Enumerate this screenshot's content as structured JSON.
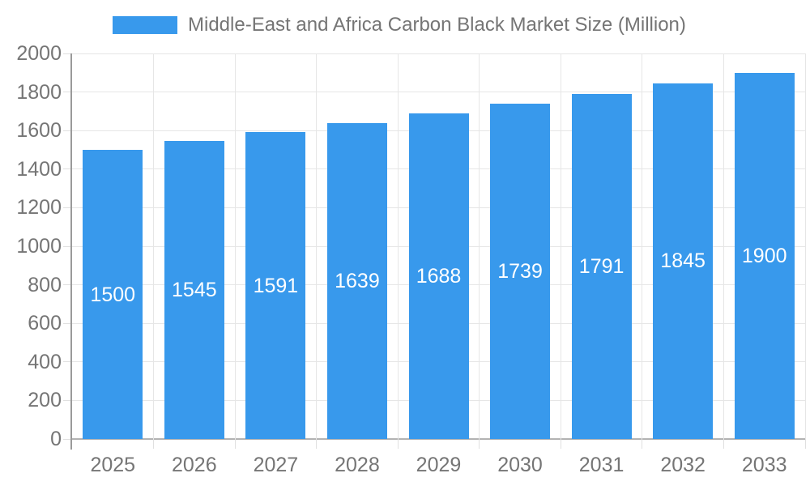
{
  "legend": {
    "label": "Middle-East and Africa Carbon Black Market Size (Million)"
  },
  "colors": {
    "bar": "#3899EC",
    "bar_label_text": "#ffffff",
    "grid_line": "#e6e6e6",
    "baseline": "#b3b3b3",
    "axis_line": "#9a9a9a",
    "tick_line": "#e0e0e0",
    "axis_label_text": "#757575"
  },
  "chart_data": {
    "type": "bar",
    "title": "Middle-East and Africa Carbon Black Market Size (Million)",
    "categories": [
      "2025",
      "2026",
      "2027",
      "2028",
      "2029",
      "2030",
      "2031",
      "2032",
      "2033"
    ],
    "values": [
      1500,
      1545,
      1591,
      1639,
      1688,
      1739,
      1791,
      1845,
      1900
    ],
    "xlabel": "",
    "ylabel": "",
    "ylim": [
      0,
      2000
    ],
    "ytick_step": 200,
    "grid": true,
    "legend_position": "top",
    "bar_value_labels": "inside-center"
  }
}
